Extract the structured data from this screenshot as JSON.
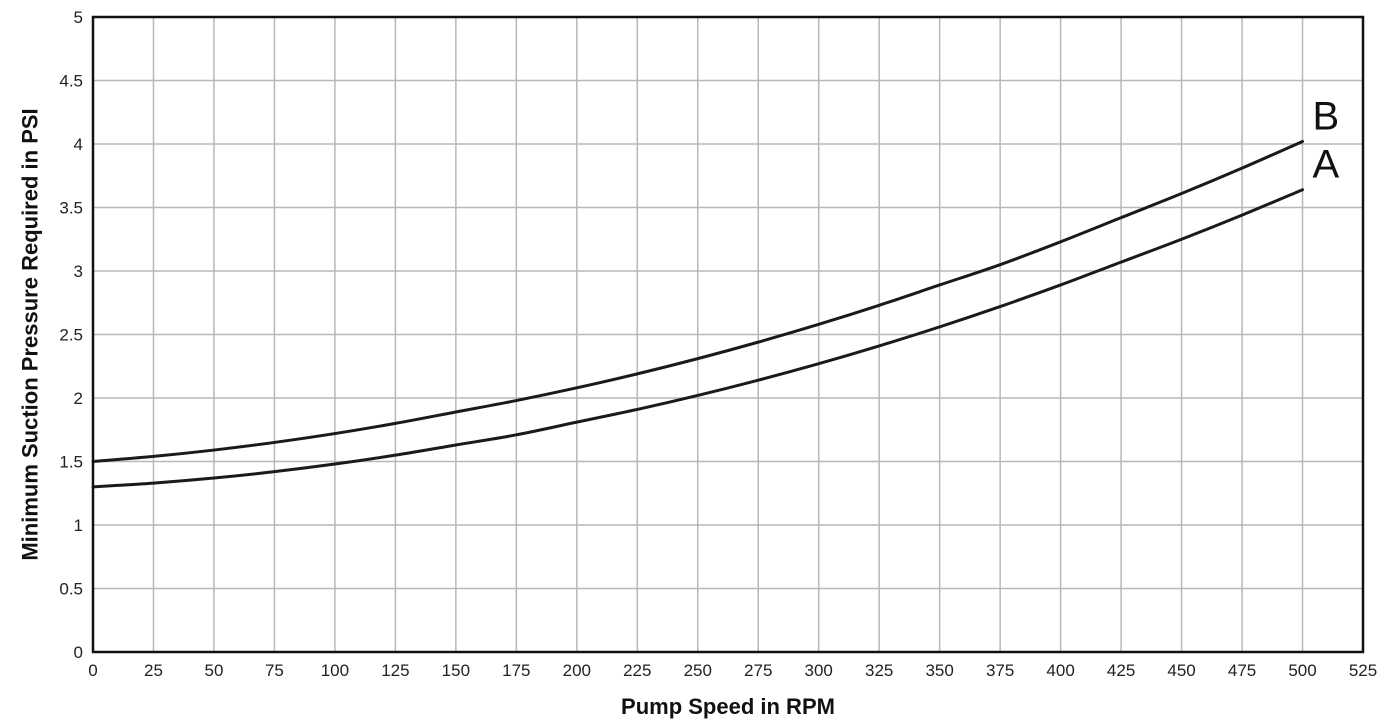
{
  "chart_data": {
    "type": "line",
    "title": "",
    "xlabel": "Pump Speed in RPM",
    "ylabel": "Minimum Suction Pressure Required in PSI",
    "xlim": [
      0,
      525
    ],
    "ylim": [
      0,
      5
    ],
    "x_ticks": [
      0,
      25,
      50,
      75,
      100,
      125,
      150,
      175,
      200,
      225,
      250,
      275,
      300,
      325,
      350,
      375,
      400,
      425,
      450,
      475,
      500,
      525
    ],
    "y_ticks": [
      0,
      0.5,
      1,
      1.5,
      2,
      2.5,
      3,
      3.5,
      4,
      4.5,
      5
    ],
    "y_tick_labels": [
      "0",
      "0.5",
      "1",
      "1.5",
      "2",
      "2.5",
      "3",
      "3.5",
      "4",
      "4.5",
      "5"
    ],
    "grid": true,
    "colors": {
      "line": "#1a1a1a",
      "grid": "#b8b8b8",
      "frame": "#111111"
    },
    "series": [
      {
        "name": "B",
        "x": [
          0,
          25,
          50,
          75,
          100,
          125,
          150,
          175,
          200,
          225,
          250,
          275,
          300,
          325,
          350,
          375,
          400,
          425,
          450,
          475,
          500
        ],
        "values": [
          1.5,
          1.54,
          1.59,
          1.65,
          1.72,
          1.8,
          1.89,
          1.98,
          2.08,
          2.19,
          2.31,
          2.44,
          2.58,
          2.73,
          2.89,
          3.05,
          3.23,
          3.42,
          3.61,
          3.81,
          4.02
        ]
      },
      {
        "name": "A",
        "x": [
          0,
          25,
          50,
          75,
          100,
          125,
          150,
          175,
          200,
          225,
          250,
          275,
          300,
          325,
          350,
          375,
          400,
          425,
          450,
          475,
          500
        ],
        "values": [
          1.3,
          1.33,
          1.37,
          1.42,
          1.48,
          1.55,
          1.63,
          1.71,
          1.81,
          1.91,
          2.02,
          2.14,
          2.27,
          2.41,
          2.56,
          2.72,
          2.89,
          3.07,
          3.25,
          3.44,
          3.64
        ]
      }
    ]
  }
}
